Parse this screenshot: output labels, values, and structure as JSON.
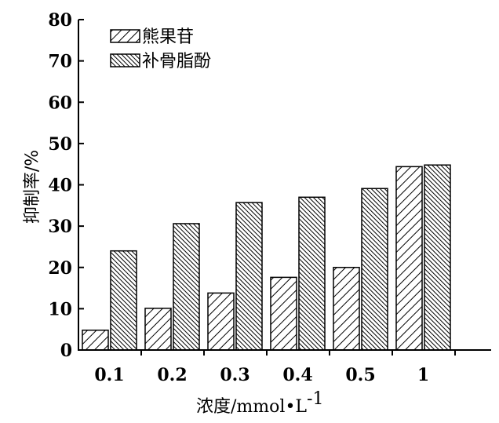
{
  "chart_data": {
    "type": "bar",
    "categories": [
      "0.1",
      "0.2",
      "0.3",
      "0.4",
      "0.5",
      "1"
    ],
    "series": [
      {
        "name": "熊果苷",
        "values": [
          4.8,
          10.1,
          13.8,
          17.6,
          20.0,
          44.4
        ],
        "pattern": "diagonal-sparse"
      },
      {
        "name": "补骨脂酚",
        "values": [
          24.0,
          30.6,
          35.7,
          37.0,
          39.1,
          44.8
        ],
        "pattern": "diagonal-dense"
      }
    ],
    "xlabel_prefix": "浓度",
    "xlabel_unit": "/mmol",
    "xlabel_dot": "•",
    "xlabel_L": "L",
    "xlabel_exp": "-1",
    "ylabel": "抑制率/%",
    "ylim": [
      0,
      80
    ],
    "yticks": [
      "0",
      "10",
      "20",
      "30",
      "40",
      "50",
      "60",
      "70",
      "80"
    ],
    "grid": false,
    "legend_position": "top-left",
    "colors": {
      "bar_stroke": "#000000",
      "background": "#ffffff"
    }
  }
}
